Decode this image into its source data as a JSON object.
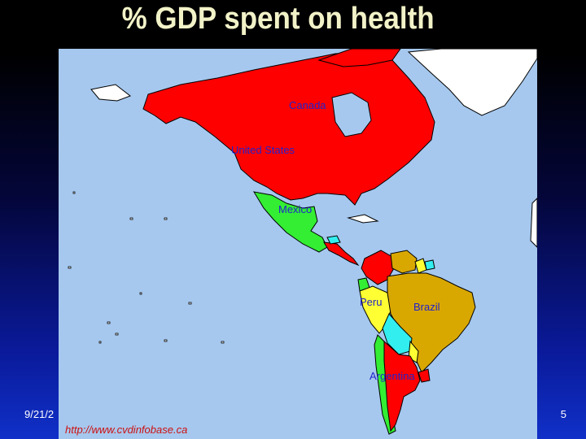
{
  "slide": {
    "title": "% GDP spent on health",
    "date": "9/21/2",
    "page_number": "5"
  },
  "map": {
    "source_url": "http://www.cvdinfobase.ca",
    "labels": {
      "canada": "Canada",
      "united_states": "United States",
      "mexico": "Mexico",
      "peru": "Peru",
      "brazil": "Brazil",
      "argentina": "Argentina"
    },
    "colors": {
      "ocean": "#a6c8ee",
      "red": "#ff0000",
      "green": "#33ee33",
      "gold": "#d9a800",
      "yellow": "#ffff33",
      "cyan": "#33eeee",
      "white": "#ffffff"
    }
  }
}
